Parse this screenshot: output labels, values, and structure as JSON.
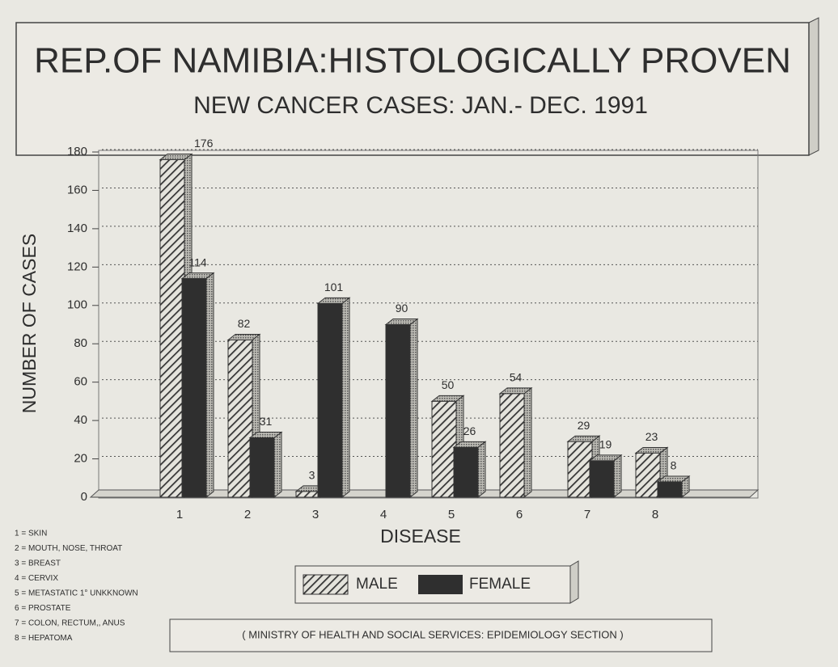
{
  "chart_data": {
    "type": "bar",
    "title": "REP.OF NAMIBIA:HISTOLOGICALLY PROVEN",
    "subtitle": "NEW CANCER CASES: JAN.- DEC.  1991",
    "ylabel": "NUMBER OF CASES",
    "xlabel": "DISEASE",
    "categories": [
      "1",
      "2",
      "3",
      "4",
      "5",
      "6",
      "7",
      "8"
    ],
    "series": [
      {
        "name": "MALE",
        "color": "#3a3a3a",
        "values": [
          176,
          82,
          3,
          null,
          50,
          54,
          29,
          23
        ]
      },
      {
        "name": "FEMALE",
        "color": "#2f2f2f",
        "values": [
          114,
          31,
          101,
          90,
          26,
          null,
          19,
          8
        ]
      }
    ],
    "ylim": [
      0,
      180
    ],
    "yticks": [
      0,
      20,
      40,
      60,
      80,
      100,
      120,
      140,
      160,
      180
    ],
    "grid": true,
    "key": [
      "1 = SKIN",
      "2 = MOUTH, NOSE, THROAT",
      "3 = BREAST",
      "4 = CERVIX",
      "5 = METASTATIC 1° UNKKNOWN",
      "6 = PROSTATE",
      "7 = COLON, RECTUM,, ANUS",
      "8 = HEPATOMA"
    ],
    "source": "( MINISTRY OF HEALTH AND SOCIAL SERVICES: EPIDEMIOLOGY SECTION )"
  }
}
